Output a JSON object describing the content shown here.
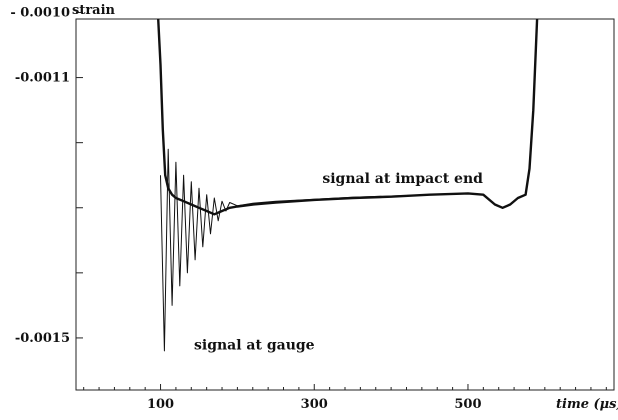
{
  "chart_data": {
    "type": "line",
    "ylabel": "strain",
    "xlabel": "time (μs)",
    "xlim": [
      -10,
      690
    ],
    "ylim": [
      -0.00158,
      -0.00101
    ],
    "x_ticks": [
      100,
      300,
      500
    ],
    "x_tick_labels": [
      "100",
      "300",
      "500"
    ],
    "y_tick_labels_values": [
      -0.001,
      -0.0011,
      -0.0015
    ],
    "y_tick_labels": [
      "- 0.0010",
      "-0.0011",
      "-0.0015"
    ],
    "y_minor_ticks": [
      -0.0012,
      -0.0013,
      -0.0014
    ],
    "grid": false,
    "series": [
      {
        "name": "signal at impact end",
        "style": "thick",
        "x": [
          97,
          100,
          103,
          106,
          110,
          115,
          120,
          130,
          140,
          150,
          160,
          170,
          180,
          190,
          200,
          220,
          250,
          300,
          350,
          400,
          450,
          500,
          520,
          535,
          545,
          555,
          565,
          575,
          580,
          585,
          590
        ],
        "y": [
          -0.00101,
          -0.00108,
          -0.00118,
          -0.00125,
          -0.00127,
          -0.00128,
          -0.001285,
          -0.00129,
          -0.001295,
          -0.0013,
          -0.001305,
          -0.00131,
          -0.001305,
          -0.0013,
          -0.001298,
          -0.001295,
          -0.001292,
          -0.001288,
          -0.001285,
          -0.001283,
          -0.00128,
          -0.001278,
          -0.00128,
          -0.001295,
          -0.0013,
          -0.001295,
          -0.001285,
          -0.00128,
          -0.00124,
          -0.00115,
          -0.00101
        ]
      },
      {
        "name": "signal at gauge",
        "style": "thin",
        "x": [
          100,
          105,
          110,
          115,
          120,
          125,
          130,
          135,
          140,
          145,
          150,
          155,
          160,
          165,
          170,
          175,
          180,
          185,
          190,
          200,
          220,
          250,
          300,
          350,
          400,
          450,
          500,
          520,
          535,
          545,
          555,
          565,
          575,
          580,
          585,
          590
        ],
        "y": [
          -0.00125,
          -0.00152,
          -0.00121,
          -0.00145,
          -0.00123,
          -0.00142,
          -0.00125,
          -0.0014,
          -0.00126,
          -0.00138,
          -0.00127,
          -0.00136,
          -0.00128,
          -0.00134,
          -0.001285,
          -0.00132,
          -0.00129,
          -0.001305,
          -0.001292,
          -0.001297,
          -0.001293,
          -0.00129,
          -0.001287,
          -0.001284,
          -0.001282,
          -0.00128,
          -0.001278,
          -0.00128,
          -0.001295,
          -0.0013,
          -0.001294,
          -0.001285,
          -0.00128,
          -0.00124,
          -0.00115,
          -0.00101
        ]
      }
    ],
    "annotations": [
      {
        "text": "signal at impact end",
        "x": 415,
        "y": -0.001262
      },
      {
        "text": "signal at gauge",
        "x": 222,
        "y": -0.001518
      }
    ]
  }
}
